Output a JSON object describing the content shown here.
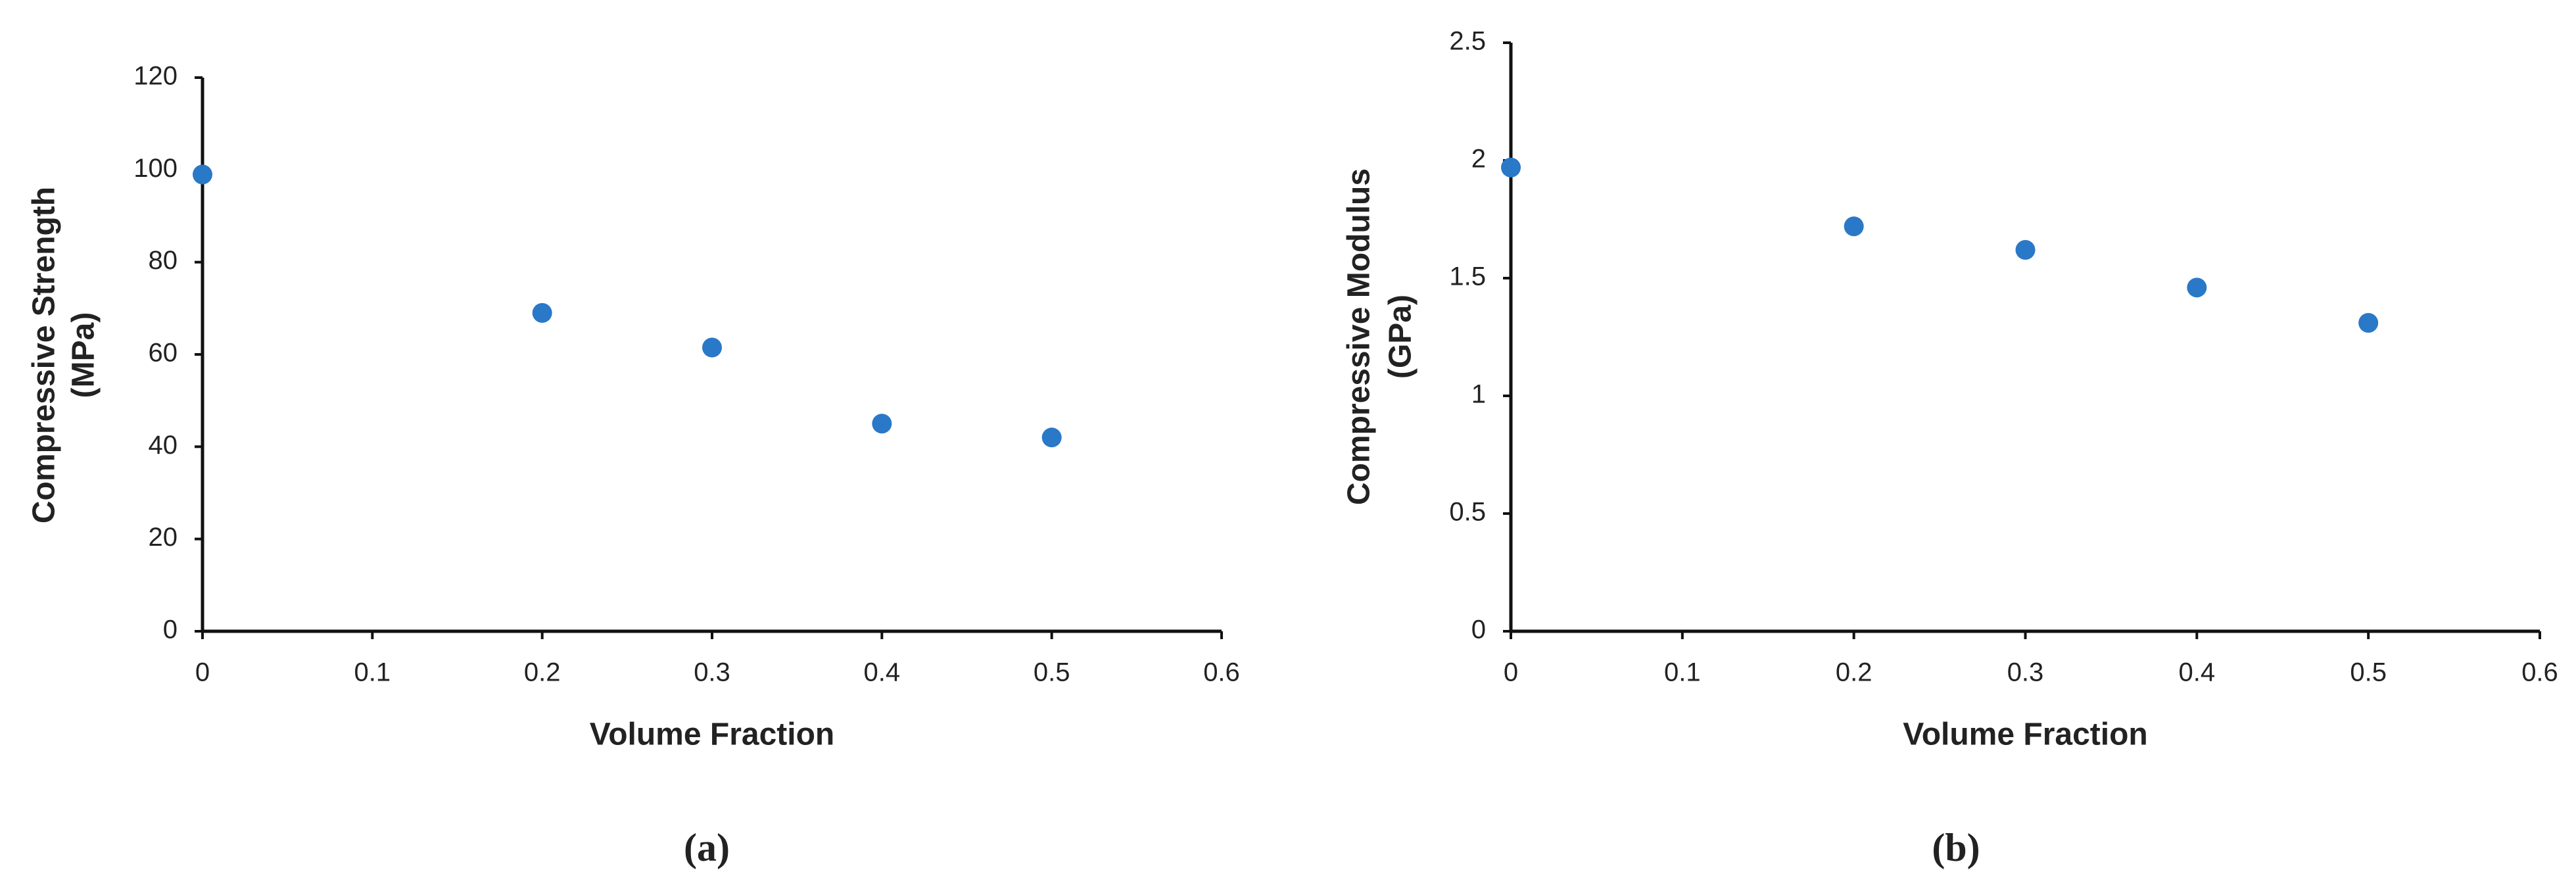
{
  "chart_data": [
    {
      "type": "scatter",
      "caption": "(a)",
      "xlabel": "Volume Fraction",
      "ylabel": [
        "Compressive Strength",
        "(MPa)"
      ],
      "x": [
        0,
        0.2,
        0.3,
        0.4,
        0.5
      ],
      "values": [
        99,
        69,
        61.5,
        45,
        42
      ],
      "color": "#2a78c8",
      "xlim": [
        0,
        0.6
      ],
      "xticks": [
        0,
        0.1,
        0.2,
        0.3,
        0.4,
        0.5,
        0.6
      ],
      "ylim": [
        0,
        120
      ],
      "yticks": [
        0,
        20,
        40,
        60,
        80,
        100,
        120
      ]
    },
    {
      "type": "scatter",
      "caption": "(b)",
      "xlabel": "Volume Fraction",
      "ylabel": [
        "Compressive Modulus",
        "(GPa)"
      ],
      "x": [
        0,
        0.2,
        0.3,
        0.4,
        0.5
      ],
      "values": [
        1.97,
        1.72,
        1.62,
        1.46,
        1.31
      ],
      "color": "#2a78c8",
      "xlim": [
        0,
        0.6
      ],
      "xticks": [
        0,
        0.1,
        0.2,
        0.3,
        0.4,
        0.5,
        0.6
      ],
      "ylim": [
        0,
        2.5
      ],
      "yticks": [
        0,
        0.5,
        1,
        1.5,
        2,
        2.5
      ]
    }
  ]
}
